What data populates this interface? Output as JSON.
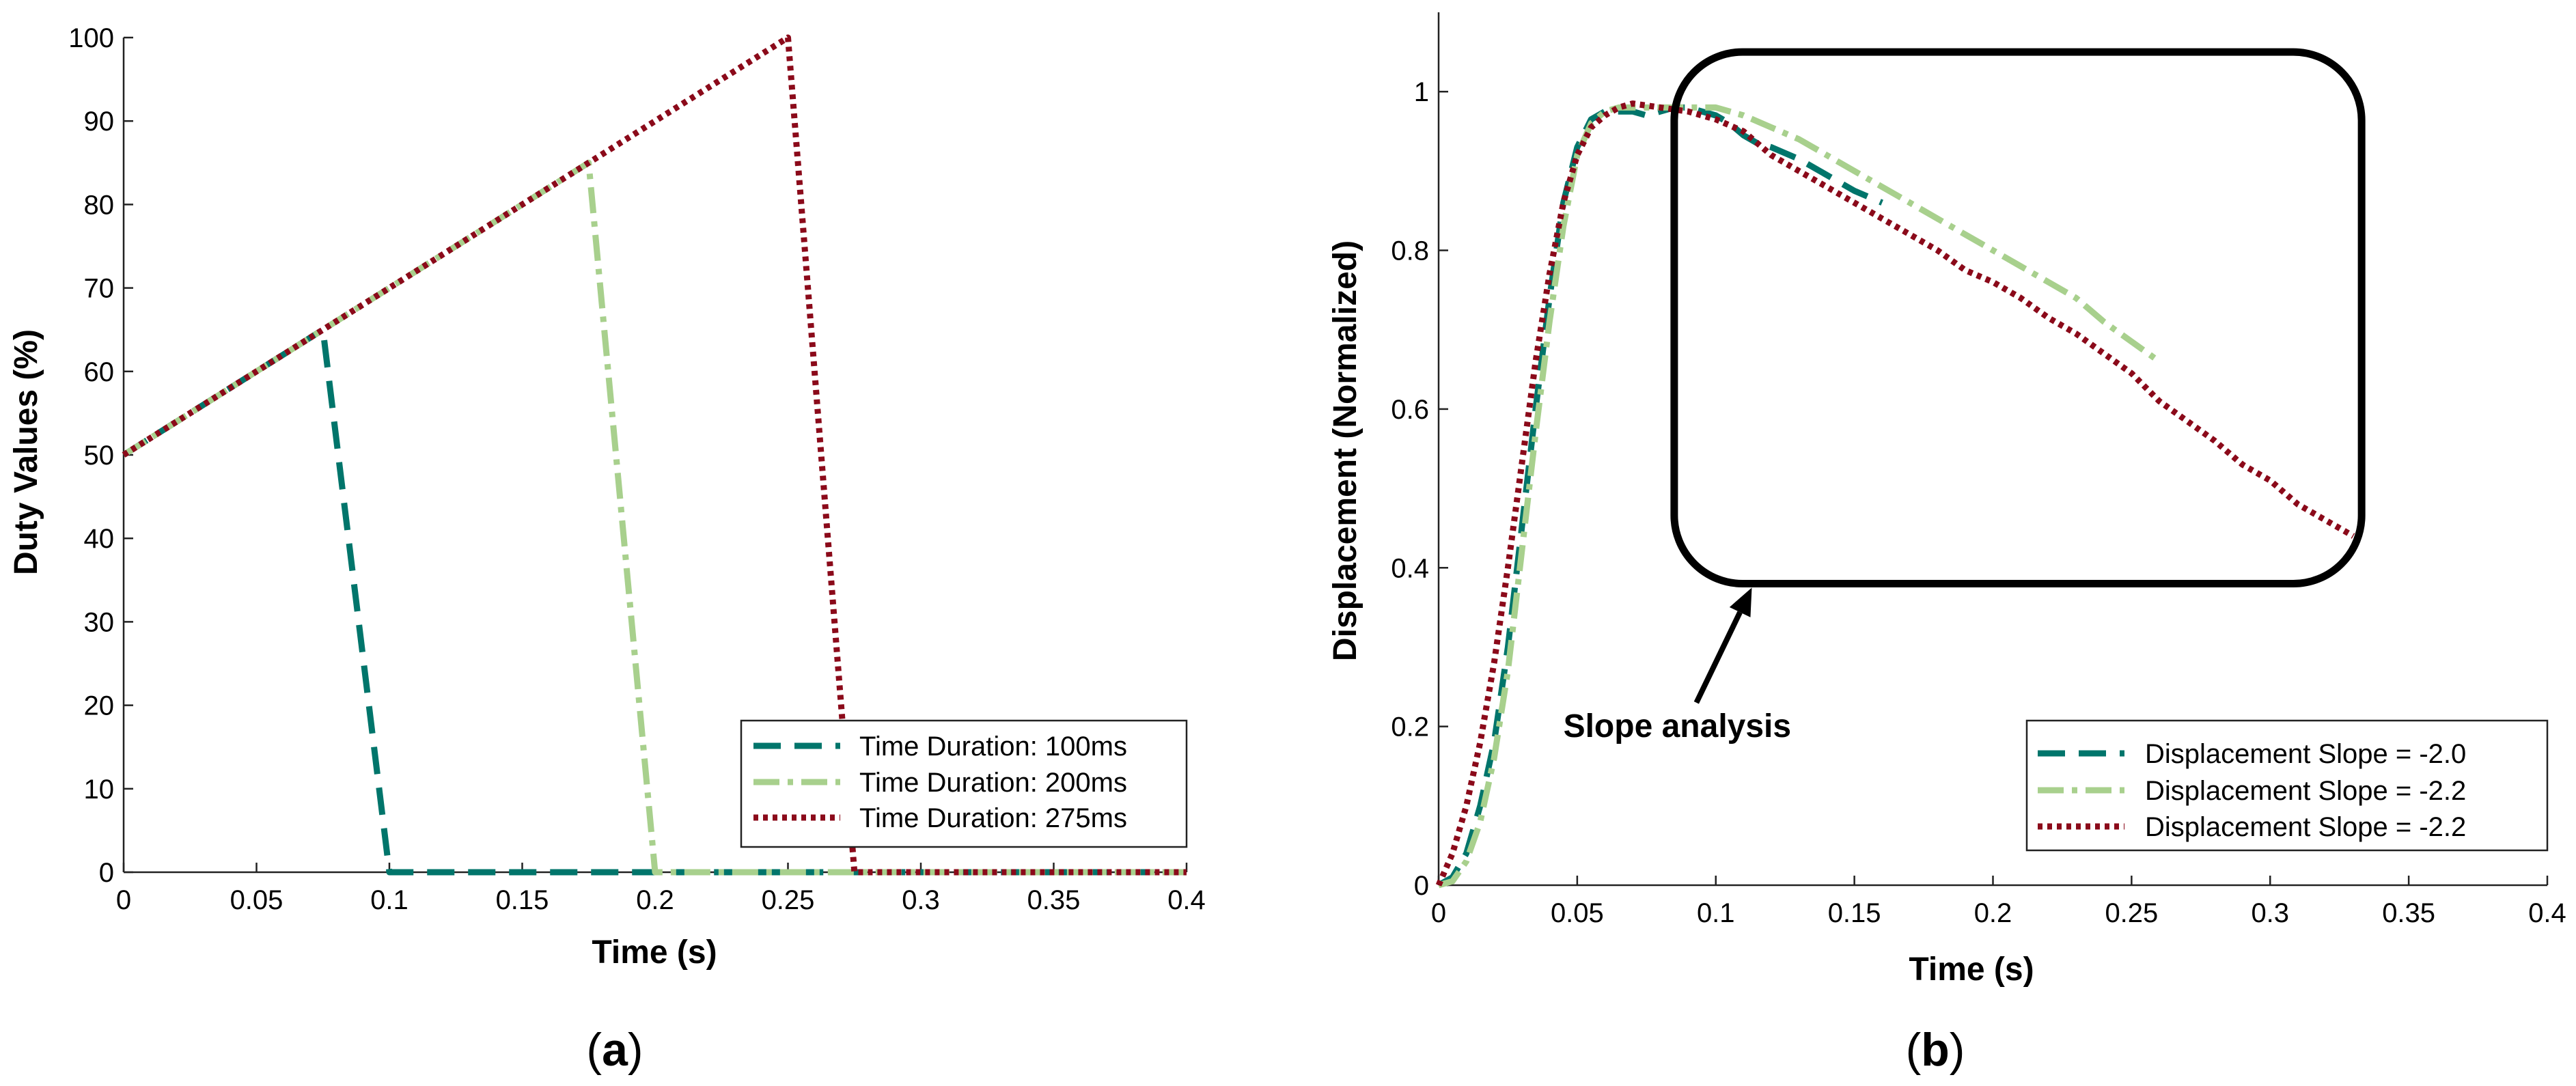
{
  "chart_data": [
    {
      "panel": "a",
      "type": "line",
      "panel_label": "(a)",
      "panel_label_parts": {
        "open": "(",
        "letter": "a",
        "close": ")"
      },
      "xlabel": "Time (s)",
      "ylabel": "Duty Values (%)",
      "xlim": [
        0,
        0.4
      ],
      "ylim": [
        0,
        100
      ],
      "xticks": [
        0,
        0.05,
        0.1,
        0.15,
        0.2,
        0.25,
        0.3,
        0.35,
        0.4
      ],
      "xtick_labels": [
        "0",
        "0.05",
        "0.1",
        "0.15",
        "0.2",
        "0.25",
        "0.3",
        "0.35",
        "0.4"
      ],
      "yticks": [
        0,
        10,
        20,
        30,
        40,
        50,
        60,
        70,
        80,
        90,
        100
      ],
      "ytick_labels": [
        "0",
        "10",
        "20",
        "30",
        "40",
        "50",
        "60",
        "70",
        "80",
        "90",
        "100"
      ],
      "grid": false,
      "legend_location": "bottom-right",
      "series": [
        {
          "name": "Time Duration: 100ms",
          "color": "#00756b",
          "style": "dashed",
          "x": [
            0,
            0.075,
            0.1,
            0.4
          ],
          "y": [
            50,
            65,
            0,
            0
          ]
        },
        {
          "name": "Time Duration: 200ms",
          "color": "#a8d08d",
          "style": "dashdot",
          "x": [
            0,
            0.175,
            0.2,
            0.4
          ],
          "y": [
            50,
            85,
            0,
            0
          ]
        },
        {
          "name": "Time Duration: 275ms",
          "color": "#8b0a1a",
          "style": "dotted",
          "x": [
            0,
            0.25,
            0.275,
            0.4
          ],
          "y": [
            50,
            100,
            0,
            0
          ]
        }
      ]
    },
    {
      "panel": "b",
      "type": "line",
      "panel_label": "(b)",
      "panel_label_parts": {
        "open": "(",
        "letter": "b",
        "close": ")"
      },
      "xlabel": "Time (s)",
      "ylabel": "Displacement (Normalized)",
      "xlim": [
        0,
        0.4
      ],
      "ylim": [
        0,
        1.1
      ],
      "xticks": [
        0,
        0.05,
        0.1,
        0.15,
        0.2,
        0.25,
        0.3,
        0.35,
        0.4
      ],
      "xtick_labels": [
        "0",
        "0.05",
        "0.1",
        "0.15",
        "0.2",
        "0.25",
        "0.3",
        "0.35",
        "0.4"
      ],
      "yticks": [
        0,
        0.2,
        0.4,
        0.6,
        0.8,
        1
      ],
      "ytick_labels": [
        "0",
        "0.2",
        "0.4",
        "0.6",
        "0.8",
        "1"
      ],
      "grid": false,
      "legend_location": "bottom-right",
      "annotation": {
        "text": "Slope analysis",
        "region": {
          "x": [
            0.085,
            0.333
          ],
          "y": [
            0.38,
            1.05
          ]
        },
        "arrow_from": {
          "x": 0.093,
          "y": 0.23
        },
        "arrow_to": {
          "x": 0.113,
          "y": 0.375
        },
        "label_at": {
          "x": 0.045,
          "y": 0.23
        }
      },
      "series": [
        {
          "name": "Displacement Slope = -2.0",
          "color": "#00756b",
          "style": "dashed",
          "x": [
            0,
            0.005,
            0.01,
            0.015,
            0.02,
            0.025,
            0.03,
            0.035,
            0.04,
            0.045,
            0.05,
            0.055,
            0.06,
            0.065,
            0.07,
            0.075,
            0.08,
            0.085,
            0.09,
            0.095,
            0.1,
            0.105,
            0.11,
            0.115,
            0.12,
            0.13,
            0.14,
            0.15,
            0.16
          ],
          "y": [
            0,
            0.01,
            0.04,
            0.1,
            0.18,
            0.3,
            0.45,
            0.6,
            0.74,
            0.86,
            0.93,
            0.965,
            0.975,
            0.975,
            0.975,
            0.97,
            0.975,
            0.98,
            0.98,
            0.975,
            0.97,
            0.96,
            0.945,
            0.935,
            0.93,
            0.915,
            0.895,
            0.875,
            0.86
          ]
        },
        {
          "name": "Displacement Slope = -2.2",
          "color": "#a8d08d",
          "style": "dashdot",
          "x": [
            0,
            0.005,
            0.01,
            0.015,
            0.02,
            0.025,
            0.03,
            0.035,
            0.04,
            0.045,
            0.05,
            0.055,
            0.06,
            0.065,
            0.07,
            0.08,
            0.09,
            0.1,
            0.11,
            0.12,
            0.13,
            0.14,
            0.15,
            0.16,
            0.17,
            0.18,
            0.19,
            0.2,
            0.21,
            0.22,
            0.23,
            0.24,
            0.25,
            0.26
          ],
          "y": [
            0,
            0.005,
            0.03,
            0.08,
            0.16,
            0.27,
            0.42,
            0.57,
            0.71,
            0.83,
            0.92,
            0.96,
            0.975,
            0.98,
            0.98,
            0.98,
            0.98,
            0.98,
            0.97,
            0.955,
            0.94,
            0.92,
            0.9,
            0.88,
            0.86,
            0.84,
            0.82,
            0.8,
            0.78,
            0.76,
            0.74,
            0.71,
            0.685,
            0.66
          ]
        },
        {
          "name": "Displacement Slope = -2.2",
          "color": "#8b0a1a",
          "style": "dotted",
          "x": [
            0,
            0.005,
            0.01,
            0.015,
            0.02,
            0.025,
            0.03,
            0.035,
            0.04,
            0.045,
            0.05,
            0.055,
            0.06,
            0.065,
            0.07,
            0.08,
            0.09,
            0.1,
            0.11,
            0.12,
            0.13,
            0.14,
            0.15,
            0.16,
            0.17,
            0.18,
            0.19,
            0.2,
            0.21,
            0.22,
            0.23,
            0.24,
            0.25,
            0.26,
            0.27,
            0.28,
            0.29,
            0.3,
            0.31,
            0.32,
            0.33
          ],
          "y": [
            0,
            0.04,
            0.1,
            0.18,
            0.28,
            0.4,
            0.53,
            0.66,
            0.77,
            0.86,
            0.92,
            0.955,
            0.97,
            0.98,
            0.985,
            0.98,
            0.975,
            0.965,
            0.95,
            0.92,
            0.9,
            0.88,
            0.86,
            0.84,
            0.82,
            0.8,
            0.775,
            0.76,
            0.74,
            0.715,
            0.695,
            0.67,
            0.645,
            0.61,
            0.585,
            0.56,
            0.53,
            0.51,
            0.48,
            0.46,
            0.44
          ]
        }
      ]
    }
  ]
}
